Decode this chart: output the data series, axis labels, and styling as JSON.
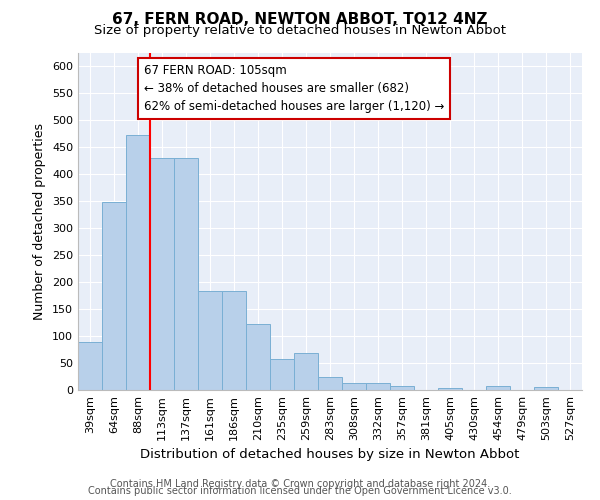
{
  "title": "67, FERN ROAD, NEWTON ABBOT, TQ12 4NZ",
  "subtitle": "Size of property relative to detached houses in Newton Abbot",
  "xlabel": "Distribution of detached houses by size in Newton Abbot",
  "ylabel": "Number of detached properties",
  "footer1": "Contains HM Land Registry data © Crown copyright and database right 2024.",
  "footer2": "Contains public sector information licensed under the Open Government Licence v3.0.",
  "categories": [
    "39sqm",
    "64sqm",
    "88sqm",
    "113sqm",
    "137sqm",
    "161sqm",
    "186sqm",
    "210sqm",
    "235sqm",
    "259sqm",
    "283sqm",
    "308sqm",
    "332sqm",
    "357sqm",
    "381sqm",
    "405sqm",
    "430sqm",
    "454sqm",
    "479sqm",
    "503sqm",
    "527sqm"
  ],
  "values": [
    88,
    348,
    472,
    430,
    430,
    184,
    184,
    123,
    57,
    68,
    25,
    13,
    13,
    8,
    0,
    3,
    0,
    7,
    0,
    5,
    0
  ],
  "bar_color": "#b8d0ea",
  "bar_edge_color": "#7aafd4",
  "red_line_x": 3,
  "annotation_line1": "67 FERN ROAD: 105sqm",
  "annotation_line2": "← 38% of detached houses are smaller (682)",
  "annotation_line3": "62% of semi-detached houses are larger (1,120) →",
  "annotation_box_facecolor": "#ffffff",
  "annotation_box_edgecolor": "#cc0000",
  "ylim_max": 625,
  "yticks": [
    0,
    50,
    100,
    150,
    200,
    250,
    300,
    350,
    400,
    450,
    500,
    550,
    600
  ],
  "bg_color": "#e8eef8",
  "grid_color": "#ffffff",
  "title_fontsize": 11,
  "subtitle_fontsize": 9.5,
  "ylabel_fontsize": 9,
  "xlabel_fontsize": 9.5,
  "tick_fontsize": 8,
  "annotation_fontsize": 8.5,
  "footer_fontsize": 7
}
